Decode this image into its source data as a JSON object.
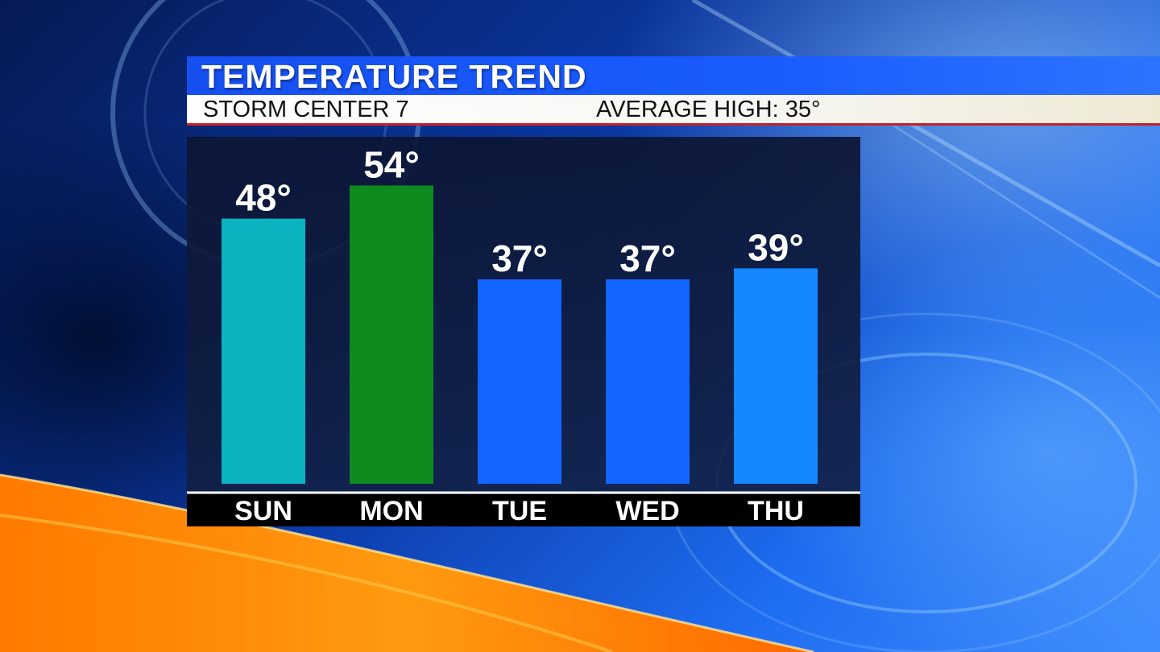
{
  "header": {
    "title": "TEMPERATURE TREND",
    "station": "STORM CENTER 7",
    "average_high": "AVERAGE HIGH: 35°"
  },
  "chart_data": {
    "type": "bar",
    "title": "TEMPERATURE TREND",
    "categories": [
      "SUN",
      "MON",
      "TUE",
      "WED",
      "THU"
    ],
    "values": [
      48,
      54,
      37,
      37,
      39
    ],
    "value_labels": [
      "48°",
      "54°",
      "37°",
      "37°",
      "39°"
    ],
    "bar_colors": [
      "#0ab3c0",
      "#0f8a1e",
      "#1266ff",
      "#1266ff",
      "#1588ff"
    ],
    "xlabel": "",
    "ylabel": "",
    "ylim": [
      0,
      60
    ],
    "grid": false,
    "legend": "none"
  },
  "colors": {
    "title_bar": "#1a5cff",
    "subtitle_bar": "#ffffff",
    "accent_line": "#c8202a",
    "panel": "#0c1634",
    "axis_strip": "#000000"
  }
}
